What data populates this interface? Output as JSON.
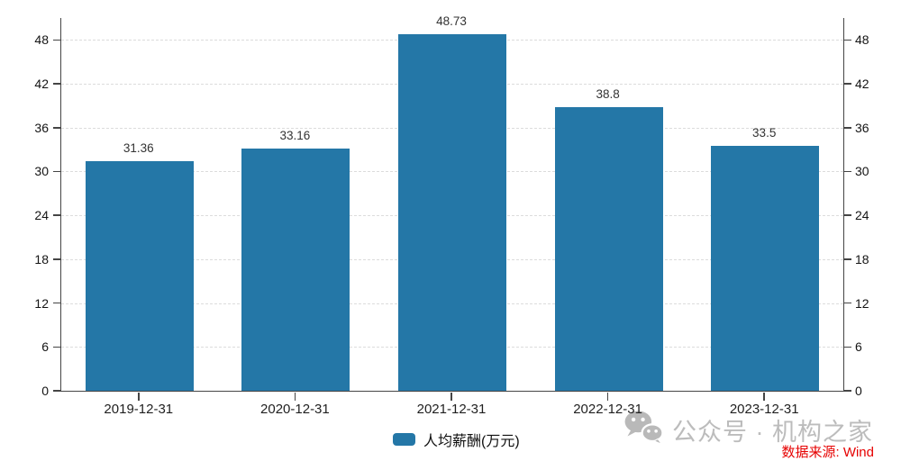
{
  "chart_data": {
    "type": "bar",
    "title": "",
    "xlabel": "",
    "ylabel": "",
    "categories": [
      "2019-12-31",
      "2020-12-31",
      "2021-12-31",
      "2022-12-31",
      "2023-12-31"
    ],
    "series": [
      {
        "name": "人均薪酬(万元)",
        "values": [
          31.36,
          33.16,
          48.73,
          38.8,
          33.5
        ]
      }
    ],
    "value_labels": [
      "31.36",
      "33.16",
      "48.73",
      "38.8",
      "33.5"
    ],
    "yticks": [
      0,
      6,
      12,
      18,
      24,
      30,
      36,
      42,
      48
    ],
    "ylim": [
      0,
      51
    ],
    "grid": "horizontal-dashed",
    "legend_position": "bottom-center",
    "bar_color": "#2477a7"
  },
  "legend": {
    "label": "人均薪酬(万元)",
    "swatch_color": "#2477a7"
  },
  "watermark": {
    "icon": "wechat-icon",
    "label": "公众号 · 机构之家",
    "color": "#bcbcbc"
  },
  "source": {
    "label": "数据来源: Wind",
    "color": "#e60000"
  },
  "colors": {
    "bar": "#2477a7",
    "axis": "#454545",
    "gridline": "#dcdcdc",
    "tick_label": "#141414",
    "data_label": "#333333"
  }
}
